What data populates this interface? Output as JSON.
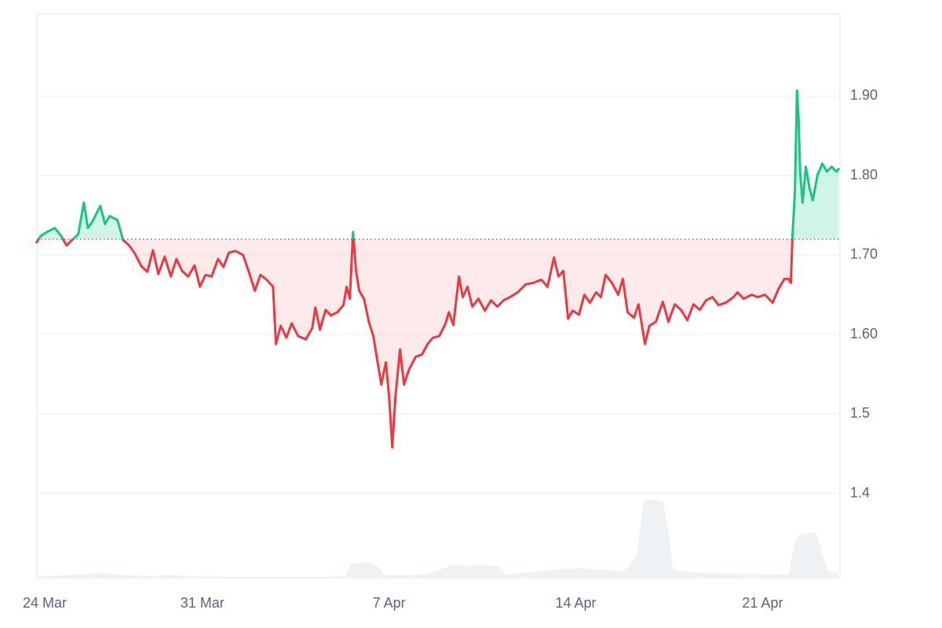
{
  "chart_data": {
    "type": "line",
    "x": [
      0.79,
      0.94,
      1.18,
      1.47,
      1.71,
      1.91,
      2.12,
      2.35,
      2.56,
      2.71,
      2.88,
      3.18,
      3.35,
      3.53,
      3.82,
      4.03,
      4.26,
      4.47,
      4.71,
      4.94,
      5.15,
      5.35,
      5.59,
      5.82,
      6.03,
      6.24,
      6.47,
      6.71,
      6.91,
      7.12,
      7.35,
      7.59,
      7.79,
      8.0,
      8.24,
      8.53,
      8.76,
      8.97,
      9.18,
      9.41,
      9.65,
      9.76,
      9.94,
      10.15,
      10.35,
      10.59,
      10.88,
      11.12,
      11.24,
      11.41,
      11.62,
      11.82,
      12.06,
      12.29,
      12.41,
      12.53,
      12.65,
      12.76,
      12.88,
      13.06,
      13.24,
      13.41,
      13.59,
      13.71,
      13.88,
      14.0,
      14.12,
      14.24,
      14.41,
      14.56,
      14.76,
      15.0,
      15.24,
      15.44,
      15.65,
      15.88,
      16.12,
      16.24,
      16.41,
      16.62,
      16.76,
      16.94,
      17.12,
      17.35,
      17.59,
      17.82,
      18.06,
      18.29,
      18.53,
      18.82,
      19.12,
      19.41,
      19.71,
      19.94,
      20.18,
      20.35,
      20.53,
      20.71,
      20.88,
      21.12,
      21.32,
      21.53,
      21.76,
      21.94,
      22.12,
      22.35,
      22.59,
      22.76,
      22.94,
      23.18,
      23.35,
      23.59,
      23.76,
      24.0,
      24.26,
      24.47,
      24.71,
      24.94,
      25.18,
      25.41,
      25.65,
      25.88,
      26.12,
      26.35,
      26.62,
      26.91,
      27.06,
      27.29,
      27.59,
      27.82,
      28.09,
      28.38,
      28.59,
      28.82,
      28.97,
      29.06,
      29.12,
      29.21,
      29.29,
      29.35,
      29.41,
      29.5,
      29.62,
      29.76,
      29.88,
      30.06,
      30.24,
      30.41,
      30.59,
      30.76,
      30.85
    ],
    "values": [
      1.716,
      1.724,
      1.729,
      1.734,
      1.724,
      1.712,
      1.719,
      1.726,
      1.766,
      1.734,
      1.742,
      1.762,
      1.739,
      1.749,
      1.744,
      1.719,
      1.712,
      1.702,
      1.686,
      1.679,
      1.706,
      1.676,
      1.698,
      1.673,
      1.695,
      1.68,
      1.673,
      1.687,
      1.66,
      1.675,
      1.673,
      1.695,
      1.685,
      1.703,
      1.705,
      1.7,
      1.677,
      1.655,
      1.675,
      1.669,
      1.66,
      1.588,
      1.611,
      1.596,
      1.614,
      1.598,
      1.594,
      1.608,
      1.634,
      1.606,
      1.631,
      1.624,
      1.628,
      1.637,
      1.66,
      1.645,
      1.729,
      1.68,
      1.655,
      1.645,
      1.616,
      1.598,
      1.561,
      1.537,
      1.565,
      1.522,
      1.458,
      1.522,
      1.581,
      1.537,
      1.557,
      1.572,
      1.575,
      1.588,
      1.596,
      1.598,
      1.614,
      1.628,
      1.612,
      1.673,
      1.647,
      1.66,
      1.635,
      1.645,
      1.63,
      1.643,
      1.635,
      1.643,
      1.647,
      1.653,
      1.663,
      1.665,
      1.669,
      1.66,
      1.697,
      1.673,
      1.68,
      1.62,
      1.63,
      1.625,
      1.65,
      1.64,
      1.653,
      1.647,
      1.675,
      1.665,
      1.65,
      1.67,
      1.628,
      1.621,
      1.638,
      1.588,
      1.611,
      1.616,
      1.641,
      1.616,
      1.638,
      1.631,
      1.618,
      1.638,
      1.631,
      1.643,
      1.647,
      1.637,
      1.64,
      1.647,
      1.653,
      1.645,
      1.65,
      1.647,
      1.65,
      1.64,
      1.657,
      1.67,
      1.67,
      1.665,
      1.724,
      1.779,
      1.907,
      1.872,
      1.803,
      1.766,
      1.811,
      1.784,
      1.769,
      1.801,
      1.815,
      1.805,
      1.811,
      1.805,
      1.808
    ],
    "baseline": 1.72,
    "up_color": "#16c784",
    "down_color": "#ea3943",
    "xlim": [
      0.8,
      30.9
    ],
    "xticks": [
      {
        "value": 0,
        "label": "24 Mar"
      },
      {
        "value": 7,
        "label": "31 Mar"
      },
      {
        "value": 14,
        "label": "7 Apr"
      },
      {
        "value": 21,
        "label": "14 Apr"
      },
      {
        "value": 28,
        "label": "21 Apr"
      }
    ],
    "ylim": [
      1.294,
      2.003
    ],
    "yticks": [
      {
        "value": 1.9,
        "label": "1.90"
      },
      {
        "value": 1.8,
        "label": "1.80"
      },
      {
        "value": 1.7,
        "label": "1.70"
      },
      {
        "value": 1.6,
        "label": "1.60"
      },
      1.5,
      1.4
    ],
    "grid": true,
    "volume": {
      "color": "#eff2f5",
      "x": [
        0.79,
        1.76,
        2.35,
        3.24,
        3.82,
        5.29,
        5.59,
        6.76,
        8.24,
        11.18,
        12.35,
        12.59,
        13.24,
        13.59,
        13.82,
        15.29,
        15.88,
        16.32,
        16.76,
        17.06,
        17.21,
        18.09,
        18.38,
        20.0,
        21.18,
        22.79,
        23.29,
        23.53,
        23.68,
        24.26,
        24.47,
        24.65,
        25.15,
        25.88,
        27.65,
        28.97,
        29.18,
        29.35,
        30.0,
        30.24,
        30.44,
        30.85
      ],
      "values": [
        2,
        3,
        4,
        6,
        4,
        2,
        4,
        2,
        1,
        1,
        2,
        18,
        20,
        14,
        3,
        4,
        10,
        16,
        17,
        14,
        17,
        15,
        4,
        10,
        12,
        8,
        30,
        95,
        100,
        98,
        60,
        10,
        8,
        6,
        5,
        4,
        40,
        55,
        58,
        30,
        10,
        6
      ],
      "ylim": [
        0,
        100
      ]
    }
  }
}
